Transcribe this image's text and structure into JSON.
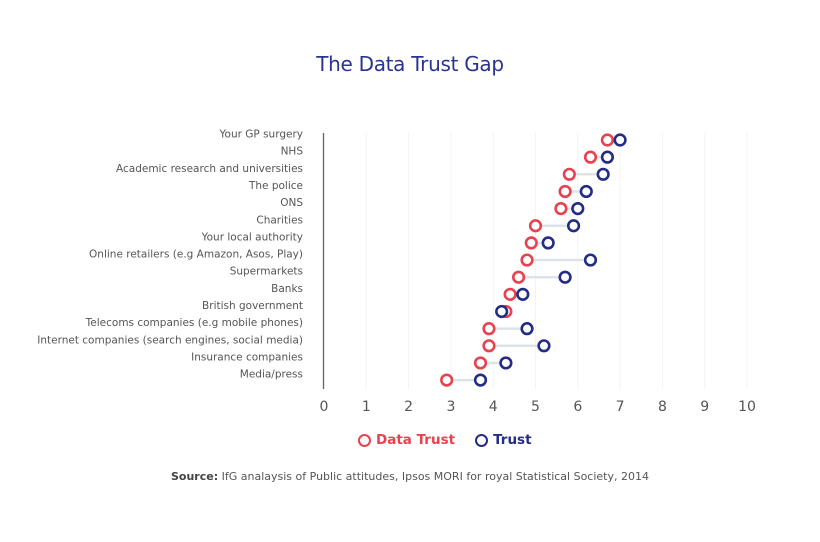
{
  "chart_data": {
    "type": "dumbbell",
    "title": "The Data Trust Gap",
    "xlabel": "",
    "ylabel": "",
    "xlim": [
      0,
      10
    ],
    "xticks": [
      0,
      1,
      2,
      3,
      4,
      5,
      6,
      7,
      8,
      9,
      10
    ],
    "grid": true,
    "legend_position": "bottom-center",
    "categories": [
      "Your GP surgery",
      "NHS",
      "Academic research and universities",
      "The police",
      "ONS",
      "Charities",
      "Your local authority",
      "Online retailers (e.g Amazon, Asos, Play)",
      "Supermarkets",
      "Banks",
      "British government",
      "Telecoms companies (e.g mobile phones)",
      "Internet companies (search engines, social media)",
      "Insurance companies",
      "Media/press"
    ],
    "series": [
      {
        "name": "Data Trust",
        "color": "#E8424F",
        "values": [
          6.7,
          6.3,
          5.8,
          5.7,
          5.6,
          5.0,
          4.9,
          4.8,
          4.6,
          4.4,
          4.3,
          3.9,
          3.9,
          3.7,
          2.9
        ]
      },
      {
        "name": "Trust",
        "color": "#232D83",
        "values": [
          7.0,
          6.7,
          6.6,
          6.2,
          6.0,
          5.9,
          5.3,
          6.3,
          5.7,
          4.7,
          4.2,
          4.8,
          5.2,
          4.3,
          3.7
        ]
      }
    ],
    "connector_color": "#DDE4E8",
    "source_label": "Source:",
    "source_text": "IfG analaysis of Public attitudes, Ipsos MORI for royal Statistical Society, 2014"
  }
}
